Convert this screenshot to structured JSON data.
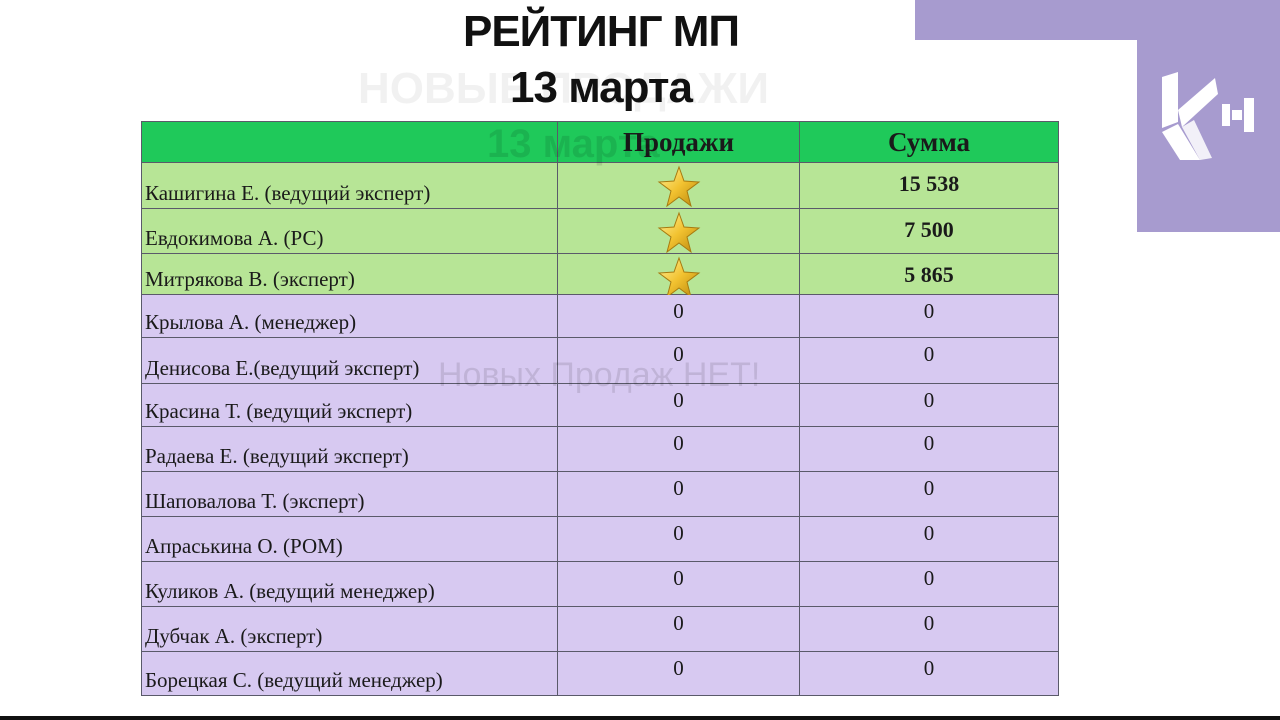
{
  "header": {
    "title": "РЕЙТИНГ МП",
    "date": "13 марта"
  },
  "ghost_texts": {
    "heading": "НОВЫЕ ПРОДАЖИ",
    "date": "13 марта",
    "notice": "Новых Продаж НЕТ!"
  },
  "brand": {
    "logo_icon": "k-plus-logo",
    "color": "#a79bcf"
  },
  "table": {
    "columns": [
      "",
      "Продажи",
      "Сумма"
    ],
    "rows": [
      {
        "name": "Кашигина Е. (ведущий эксперт)",
        "sales": "star",
        "sum": "15 538",
        "highlight": "green"
      },
      {
        "name": "Евдокимова А. (РС)",
        "sales": "star",
        "sum": "7 500",
        "highlight": "green"
      },
      {
        "name": "Митрякова В. (эксперт)",
        "sales": "star",
        "sum": "5 865",
        "highlight": "green"
      },
      {
        "name": "Крылова А. (менеджер)",
        "sales": "0",
        "sum": "0"
      },
      {
        "name": "Денисова Е.(ведущий эксперт)",
        "sales": "0",
        "sum": "0"
      },
      {
        "name": "Красина Т. (ведущий эксперт)",
        "sales": "0",
        "sum": "0"
      },
      {
        "name": "Радаева Е. (ведущий эксперт)",
        "sales": "0",
        "sum": "0"
      },
      {
        "name": "Шаповалова Т. (эксперт)",
        "sales": "0",
        "sum": "0"
      },
      {
        "name": "Апраськина О. (РОМ)",
        "sales": "0",
        "sum": "0"
      },
      {
        "name": "Куликов А. (ведущий менеджер)",
        "sales": "0",
        "sum": "0"
      },
      {
        "name": "Дубчак А. (эксперт)",
        "sales": "0",
        "sum": "0"
      },
      {
        "name": "Борецкая С. (ведущий менеджер)",
        "sales": "0",
        "sum": "0"
      }
    ],
    "colors": {
      "header": "#1fc95a",
      "top_rows": "#b7e596",
      "other_rows": "#d7c9f1"
    }
  }
}
